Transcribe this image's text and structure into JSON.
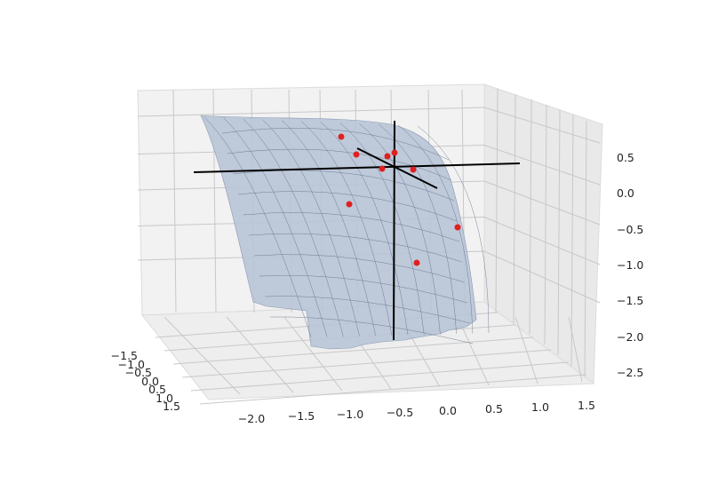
{
  "chart_data": {
    "type": "scatter",
    "projection": "3d",
    "x_axis": {
      "ticks": [
        "−1.5",
        "−1.0",
        "−0.5",
        "0.0",
        "0.5",
        "1.0",
        "1.5"
      ]
    },
    "y_axis": {
      "ticks": [
        "−2.0",
        "−1.5",
        "−1.0",
        "−0.5",
        "0.0",
        "0.5",
        "1.0",
        "1.5"
      ]
    },
    "z_axis": {
      "ticks": [
        "0.5",
        "0.0",
        "−0.5",
        "−1.0",
        "−1.5",
        "−2.0",
        "−2.5"
      ]
    },
    "surface": {
      "color": "#b8c4d6",
      "edge_color": "#5a6a85"
    },
    "point_color": "#e02020",
    "axis_lines_color": "#000000",
    "grid": true,
    "pane_color": "#f2f2f2"
  }
}
